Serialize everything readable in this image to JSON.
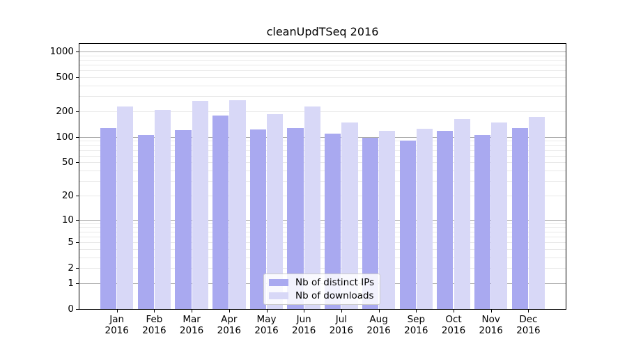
{
  "chart_data": {
    "type": "bar",
    "title": "cleanUpdTSeq 2016",
    "categories": [
      "Jan",
      "Feb",
      "Mar",
      "Apr",
      "May",
      "Jun",
      "Jul",
      "Aug",
      "Sep",
      "Oct",
      "Nov",
      "Dec"
    ],
    "year_label": "2016",
    "series": [
      {
        "name": "Nb of distinct IPs",
        "color": "#a9a9f0",
        "values": [
          127,
          106,
          121,
          179,
          123,
          127,
          109,
          98,
          91,
          117,
          105,
          128
        ]
      },
      {
        "name": "Nb of downloads",
        "color": "#d8d8f7",
        "values": [
          227,
          208,
          265,
          270,
          185,
          227,
          149,
          118,
          125,
          164,
          148,
          173
        ]
      }
    ],
    "xlabel": "",
    "ylabel": "",
    "yscale": "symlog",
    "yticks": [
      0,
      1,
      2,
      5,
      10,
      20,
      50,
      100,
      200,
      500,
      1000
    ],
    "ylim": [
      0,
      1230
    ],
    "grid": true,
    "grid_major_color": "#ababab",
    "grid_minor_color": "#e8e8e8",
    "legend_position": "lower center"
  }
}
